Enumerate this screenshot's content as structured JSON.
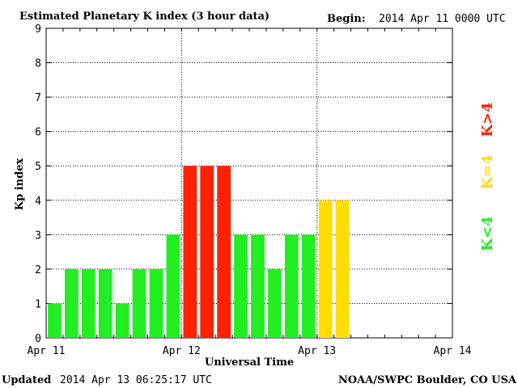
{
  "header": {
    "title": "Estimated Planetary K index (3 hour data)",
    "begin_label": "Begin:",
    "begin_value": "2014 Apr 11 0000 UTC"
  },
  "footer": {
    "updated_label": "Updated",
    "updated_value": "2014 Apr 13 06:25:17 UTC",
    "source": "NOAA/SWPC Boulder, CO USA"
  },
  "legend": {
    "low": "K<4",
    "equal": "K=4",
    "high": "K>4"
  },
  "colors": {
    "low": "#22ee22",
    "equal": "#ffdd00",
    "high": "#ff2200"
  },
  "chart_data": {
    "type": "bar",
    "title": "Estimated Planetary K index (3 hour data)",
    "xlabel": "Universal Time",
    "ylabel": "Kp index",
    "ylim": [
      0,
      9
    ],
    "yticks": [
      "0",
      "1",
      "2",
      "3",
      "4",
      "5",
      "6",
      "7",
      "8",
      "9"
    ],
    "xticks": [
      "Apr 11",
      "Apr 12",
      "Apr 13",
      "Apr 14"
    ],
    "x_start": "2014-04-11 00:00 UTC",
    "x_end": "2014-04-14 00:00 UTC",
    "interval_hours": 3,
    "grid": true,
    "values": [
      1,
      2,
      2,
      2,
      1,
      2,
      2,
      3,
      5,
      5,
      5,
      3,
      3,
      2,
      3,
      3,
      4,
      4
    ]
  }
}
